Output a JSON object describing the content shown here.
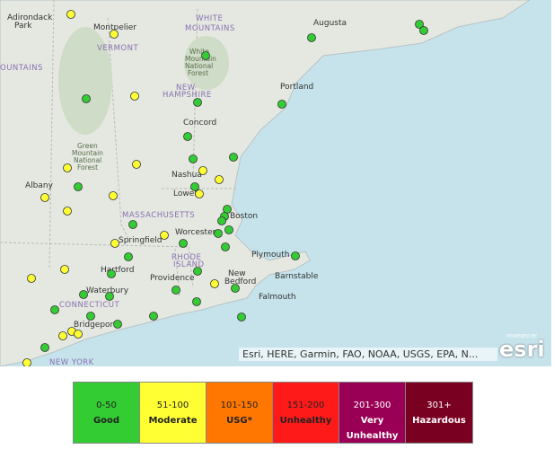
{
  "map": {
    "labels": [
      "Adirondack",
      "Park",
      "Montpelier",
      "VERMONT",
      "WHITE",
      "MOUNTAINS",
      "White",
      "Mountain",
      "National",
      "Forest",
      "Augusta",
      "OUNTAINS",
      "NEW",
      "HAMPSHIRE",
      "Portland",
      "Concord",
      "Green",
      "Mountain",
      "National",
      "Forest",
      "Nashua",
      "Albany",
      "Lowell",
      "Boston",
      "MASSACHUSETTS",
      "Worcester",
      "Springfield",
      "RHODE",
      "ISLAND",
      "Plymouth",
      "Hartford",
      "Providence",
      "New",
      "Bedford",
      "Barnstable",
      "Waterbury",
      "Falmouth",
      "CONNECTICUT",
      "Bridgeport",
      "NEW YORK"
    ],
    "attribution": "Esri, HERE, Garmin, FAO, NOAA, USGS, EPA, N...",
    "logo_caption": "POWERED BY",
    "logo": "esri"
  },
  "legend": [
    {
      "range": "0-50",
      "label": "Good",
      "color": "#33cc33"
    },
    {
      "range": "51-100",
      "label": "Moderate",
      "color": "#ffff33"
    },
    {
      "range": "101-150",
      "label": "USG*",
      "color": "#ff7700"
    },
    {
      "range": "151-200",
      "label": "Unhealthy",
      "color": "#ff1a1a"
    },
    {
      "range": "201-300",
      "label": "Very Unhealthy",
      "color": "#990055"
    },
    {
      "range": "301+",
      "label": "Hazardous",
      "color": "#7a0022"
    }
  ]
}
